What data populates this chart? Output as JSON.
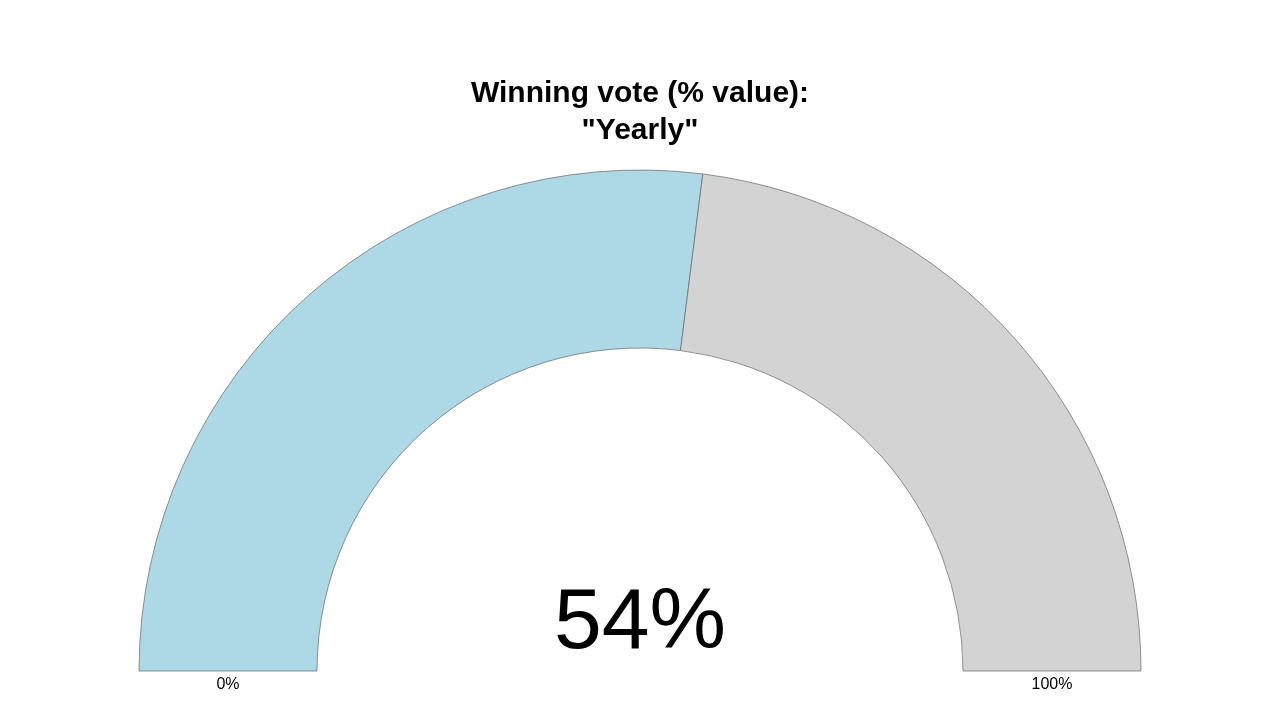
{
  "chart_data": {
    "type": "donut",
    "title": "Winning vote (% value):\n\"Yearly\"",
    "categories": [
      null,
      null
    ],
    "values": [
      54,
      46
    ],
    "colors": [
      "#add8e6",
      "#d3d3d3"
    ],
    "value_labels": [
      "54%",
      null
    ],
    "annotations": [
      "0%",
      "100%"
    ]
  }
}
